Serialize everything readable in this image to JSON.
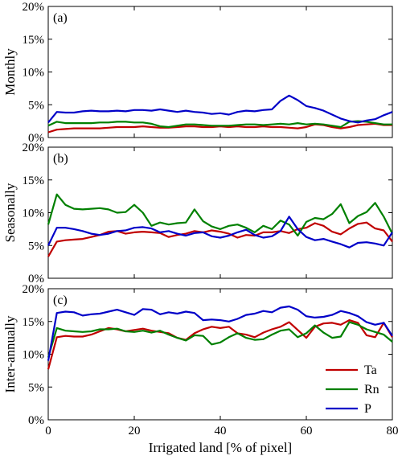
{
  "chart_data": {
    "type": "line",
    "xlabel": "Irrigated land [% of pixel]",
    "xlim": [
      0,
      80
    ],
    "xticks": [
      "0",
      "20",
      "40",
      "60",
      "80"
    ],
    "ylim": [
      0,
      20
    ],
    "yticks": [
      "0%",
      "5%",
      "10%",
      "15%",
      "20%"
    ],
    "legend": {
      "placement": "lower-right",
      "panel": 2
    },
    "series_colors": {
      "Ta": "#c00000",
      "Rn": "#008000",
      "P": "#0000c8"
    },
    "panels": [
      {
        "label": "(a)",
        "ylabel": "Monthly",
        "x": [
          0,
          2,
          4,
          6,
          8,
          10,
          12,
          14,
          16,
          18,
          20,
          22,
          24,
          26,
          28,
          30,
          32,
          34,
          36,
          38,
          40,
          42,
          44,
          46,
          48,
          50,
          52,
          54,
          56,
          58,
          60,
          62,
          64,
          66,
          68,
          70,
          72,
          74,
          76,
          78,
          80
        ],
        "series": [
          {
            "name": "Ta",
            "values": [
              0.8,
              1.2,
              1.3,
              1.4,
              1.4,
              1.4,
              1.4,
              1.5,
              1.6,
              1.6,
              1.6,
              1.7,
              1.6,
              1.5,
              1.5,
              1.6,
              1.7,
              1.7,
              1.6,
              1.6,
              1.7,
              1.6,
              1.7,
              1.6,
              1.6,
              1.7,
              1.6,
              1.6,
              1.5,
              1.4,
              1.6,
              2.0,
              1.9,
              1.6,
              1.4,
              1.6,
              1.9,
              2.0,
              2.1,
              1.9,
              1.9
            ]
          },
          {
            "name": "Rn",
            "values": [
              1.8,
              2.4,
              2.2,
              2.2,
              2.2,
              2.2,
              2.3,
              2.3,
              2.4,
              2.4,
              2.3,
              2.3,
              2.1,
              1.7,
              1.6,
              1.8,
              2.0,
              2.0,
              1.9,
              1.8,
              1.8,
              1.8,
              1.9,
              2.0,
              2.0,
              1.9,
              2.0,
              2.1,
              2.0,
              2.2,
              2.0,
              2.1,
              2.0,
              1.8,
              1.6,
              2.4,
              2.5,
              2.4,
              2.2,
              2.0,
              2.0
            ]
          },
          {
            "name": "P",
            "values": [
              2.3,
              3.9,
              3.8,
              3.8,
              4.0,
              4.1,
              4.0,
              4.0,
              4.1,
              4.0,
              4.2,
              4.2,
              4.1,
              4.3,
              4.1,
              3.9,
              4.1,
              3.9,
              3.8,
              3.6,
              3.7,
              3.5,
              3.9,
              4.1,
              4.0,
              4.2,
              4.3,
              5.6,
              6.4,
              5.7,
              4.8,
              4.5,
              4.1,
              3.5,
              2.9,
              2.5,
              2.3,
              2.6,
              2.8,
              3.4,
              3.9
            ]
          }
        ]
      },
      {
        "label": "(b)",
        "ylabel": "Seasonally",
        "x": [
          0,
          2,
          4,
          6,
          8,
          10,
          12,
          14,
          16,
          18,
          20,
          22,
          24,
          26,
          28,
          30,
          32,
          34,
          36,
          38,
          40,
          42,
          44,
          46,
          48,
          50,
          52,
          54,
          56,
          58,
          60,
          62,
          64,
          66,
          68,
          70,
          72,
          74,
          76,
          78,
          80
        ],
        "series": [
          {
            "name": "Ta",
            "values": [
              3.3,
              5.6,
              5.8,
              5.9,
              6.0,
              6.3,
              6.6,
              7.1,
              7.2,
              6.8,
              7.0,
              7.1,
              7.0,
              6.9,
              6.3,
              6.6,
              6.8,
              7.2,
              7.0,
              7.3,
              7.1,
              6.8,
              6.2,
              6.6,
              6.5,
              7.0,
              7.0,
              7.2,
              6.9,
              7.5,
              7.7,
              8.4,
              8.0,
              7.1,
              6.7,
              7.6,
              8.3,
              8.5,
              7.6,
              7.3,
              5.6
            ]
          },
          {
            "name": "Rn",
            "values": [
              8.2,
              12.8,
              11.2,
              10.6,
              10.5,
              10.6,
              10.7,
              10.5,
              10.0,
              10.1,
              11.2,
              10.0,
              8.0,
              8.5,
              8.2,
              8.4,
              8.5,
              10.5,
              8.7,
              7.9,
              7.5,
              8.0,
              8.2,
              7.7,
              7.0,
              8.0,
              7.5,
              8.8,
              8.2,
              6.5,
              8.6,
              9.2,
              9.0,
              9.8,
              11.3,
              8.4,
              9.5,
              10.1,
              11.5,
              9.4,
              6.8
            ]
          },
          {
            "name": "P",
            "values": [
              5.0,
              7.7,
              7.7,
              7.5,
              7.2,
              6.8,
              6.6,
              6.8,
              7.2,
              7.3,
              7.7,
              7.8,
              7.6,
              7.0,
              7.2,
              6.8,
              6.5,
              6.9,
              7.0,
              6.4,
              6.2,
              6.5,
              7.0,
              7.4,
              6.6,
              6.2,
              6.4,
              7.2,
              9.4,
              7.5,
              6.3,
              5.8,
              6.0,
              5.6,
              5.2,
              4.7,
              5.4,
              5.5,
              5.3,
              5.0,
              7.0
            ]
          }
        ]
      },
      {
        "label": "(c)",
        "ylabel": "Inter-annually",
        "x": [
          0,
          2,
          4,
          6,
          8,
          10,
          12,
          14,
          16,
          18,
          20,
          22,
          24,
          26,
          28,
          30,
          32,
          34,
          36,
          38,
          40,
          42,
          44,
          46,
          48,
          50,
          52,
          54,
          56,
          58,
          60,
          62,
          64,
          66,
          68,
          70,
          72,
          74,
          76,
          78,
          80
        ],
        "series": [
          {
            "name": "Ta",
            "values": [
              7.7,
              12.6,
              12.8,
              12.7,
              12.7,
              13.0,
              13.5,
              14.0,
              13.8,
              13.5,
              13.7,
              13.9,
              13.6,
              13.4,
              13.2,
              12.5,
              12.2,
              13.2,
              13.8,
              14.2,
              14.0,
              14.2,
              13.2,
              13.0,
              12.6,
              13.3,
              13.8,
              14.2,
              14.9,
              13.7,
              12.5,
              14.2,
              14.7,
              14.8,
              14.5,
              15.2,
              14.8,
              12.9,
              12.6,
              14.8,
              12.6
            ]
          },
          {
            "name": "Rn",
            "values": [
              9.5,
              14.0,
              13.6,
              13.5,
              13.4,
              13.5,
              13.8,
              13.8,
              13.9,
              13.5,
              13.4,
              13.6,
              13.3,
              13.6,
              13.0,
              12.5,
              12.1,
              12.9,
              12.8,
              11.5,
              11.8,
              12.6,
              13.2,
              12.5,
              12.2,
              12.3,
              13.0,
              13.6,
              13.8,
              12.6,
              13.2,
              14.4,
              13.3,
              12.5,
              12.7,
              14.9,
              14.5,
              13.8,
              13.4,
              13.0,
              11.9
            ]
          },
          {
            "name": "P",
            "values": [
              9.0,
              16.3,
              16.5,
              16.4,
              15.9,
              16.1,
              16.2,
              16.5,
              16.8,
              16.4,
              16.0,
              16.9,
              16.8,
              16.1,
              16.4,
              16.2,
              16.5,
              16.3,
              15.2,
              15.3,
              15.2,
              15.0,
              15.4,
              16.0,
              16.2,
              16.6,
              16.4,
              17.1,
              17.3,
              16.8,
              15.8,
              15.6,
              15.7,
              16.0,
              16.6,
              16.3,
              15.8,
              14.9,
              14.5,
              14.8,
              12.8
            ]
          }
        ]
      }
    ]
  }
}
